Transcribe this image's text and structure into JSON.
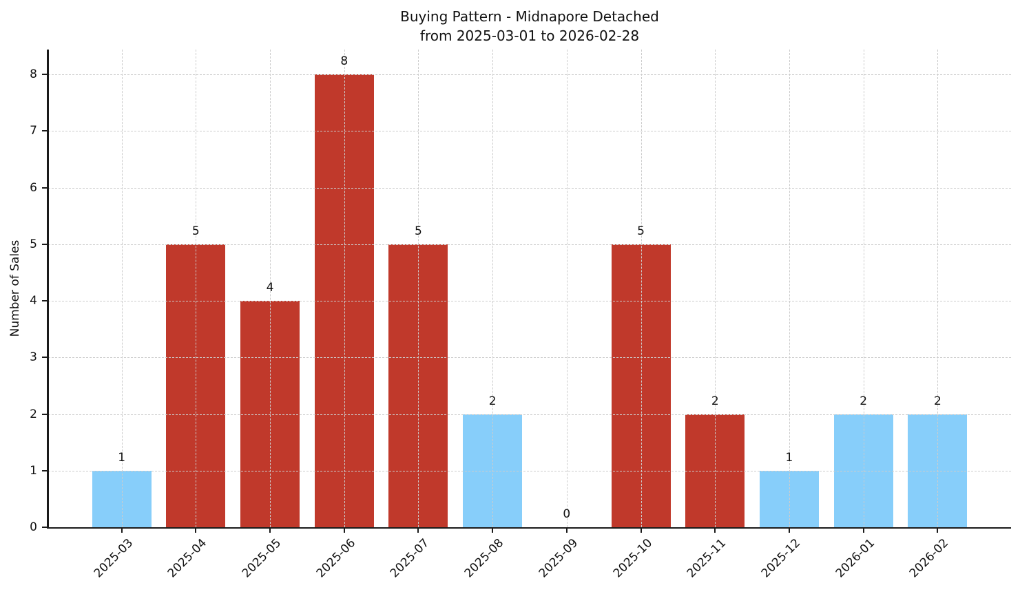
{
  "figure": {
    "title_line1": "Buying Pattern - Midnapore Detached",
    "title_line2": "from 2025-03-01 to 2026-02-28"
  },
  "chart_data": {
    "type": "bar",
    "title": "Buying Pattern - Midnapore Detached\nfrom 2025-03-01 to 2026-02-28",
    "xlabel": "",
    "ylabel": "Number of Sales",
    "categories": [
      "2025-03",
      "2025-04",
      "2025-05",
      "2025-06",
      "2025-07",
      "2025-08",
      "2025-09",
      "2025-10",
      "2025-11",
      "2025-12",
      "2026-01",
      "2026-02"
    ],
    "values": [
      1,
      5,
      4,
      8,
      5,
      2,
      0,
      5,
      2,
      1,
      2,
      2
    ],
    "bar_colors": [
      "#87CEFA",
      "#C0392B",
      "#C0392B",
      "#C0392B",
      "#C0392B",
      "#87CEFA",
      null,
      "#C0392B",
      "#C0392B",
      "#87CEFA",
      "#87CEFA",
      "#87CEFA"
    ],
    "bar_color_legend": {
      "blue": "#87CEFA",
      "red": "#C0392B"
    },
    "value_labels": [
      "1",
      "5",
      "4",
      "8",
      "5",
      "2",
      "0",
      "5",
      "2",
      "1",
      "2",
      "2"
    ],
    "yticks": [
      0,
      1,
      2,
      3,
      4,
      5,
      6,
      7,
      8
    ],
    "ylim": [
      0,
      8.44
    ],
    "grid": true,
    "grid_style": "dashed",
    "legend_position": "none",
    "x_tick_rotation_deg": 45
  }
}
